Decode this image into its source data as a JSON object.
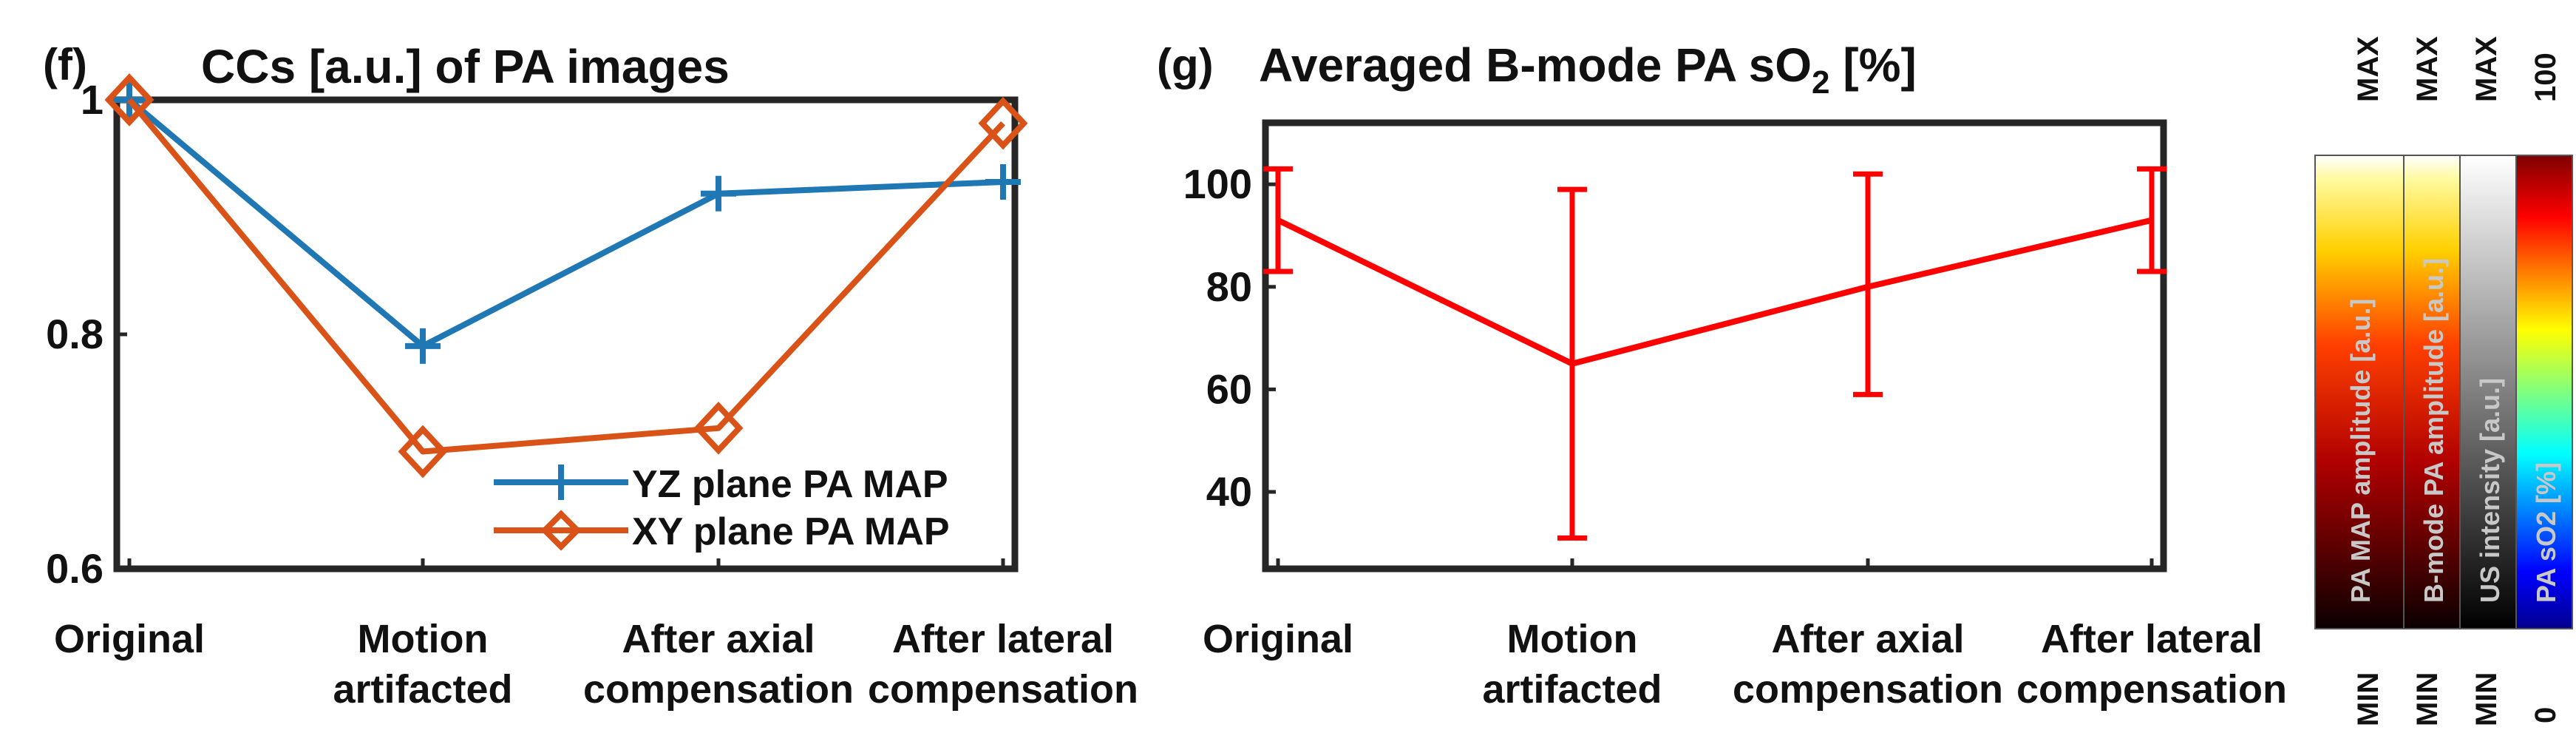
{
  "chart_data": [
    {
      "type": "line",
      "panel": "(f)",
      "title": "CCs [a.u.] of PA images",
      "xlabel": "",
      "ylabel": "",
      "categories": [
        "Original",
        "Motion artifacted",
        "After axial compensation",
        "After lateral compensation"
      ],
      "category_lines": [
        [
          "Original"
        ],
        [
          "Motion",
          "artifacted"
        ],
        [
          "After axial",
          "compensation"
        ],
        [
          "After lateral",
          "compensation"
        ]
      ],
      "ylim": [
        0.6,
        1.0
      ],
      "yticks": [
        0.6,
        0.8,
        1.0
      ],
      "ytick_labels": [
        "0.6",
        "0.8",
        "1"
      ],
      "legend_position": "bottom-right",
      "series": [
        {
          "name": "YZ plane PA MAP",
          "color": "#1f77b4",
          "marker": "plus",
          "values": [
            1.0,
            0.79,
            0.92,
            0.93
          ]
        },
        {
          "name": "XY plane PA MAP",
          "color": "#d95319",
          "marker": "diamond",
          "values": [
            1.0,
            0.7,
            0.72,
            0.98
          ]
        }
      ]
    },
    {
      "type": "line",
      "panel": "(g)",
      "title": "Averaged B-mode PA sO",
      "title_subscript": "2",
      "title_suffix": " [%]",
      "xlabel": "",
      "ylabel": "",
      "categories": [
        "Original",
        "Motion artifacted",
        "After axial compensation",
        "After lateral compensation"
      ],
      "category_lines": [
        [
          "Original"
        ],
        [
          "Motion",
          "artifacted"
        ],
        [
          "After axial",
          "compensation"
        ],
        [
          "After lateral",
          "compensation"
        ]
      ],
      "ylim": [
        25,
        112
      ],
      "yticks": [
        40,
        60,
        80,
        100
      ],
      "ytick_labels": [
        "40",
        "60",
        "80",
        "100"
      ],
      "series": [
        {
          "name": "sO2",
          "color": "#ff0000",
          "marker": "none",
          "values": [
            93,
            65,
            80,
            93
          ],
          "error_low": [
            83,
            31,
            59,
            83
          ],
          "error_high": [
            103,
            99,
            102,
            103
          ]
        }
      ]
    }
  ],
  "colorbars": [
    {
      "label": "PA MAP amplitude [a.u.]",
      "max_label": "MAX",
      "min_label": "MIN",
      "colormap": "hot"
    },
    {
      "label": "B-mode PA amplitude [a.u.]",
      "max_label": "MAX",
      "min_label": "MIN",
      "colormap": "hot"
    },
    {
      "label": "US intensity [a.u.]",
      "max_label": "MAX",
      "min_label": "MIN",
      "colormap": "gray"
    },
    {
      "label": "PA sO2 [%]",
      "max_label": "100",
      "min_label": "0",
      "colormap": "jet"
    }
  ]
}
